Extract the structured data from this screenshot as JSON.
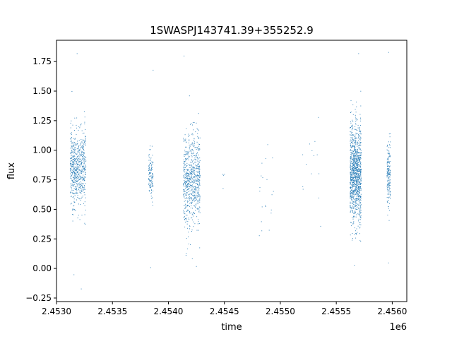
{
  "chart_data": {
    "type": "scatter",
    "title": "1SWASPJ143741.39+355252.9",
    "xlabel": "time",
    "ylabel": "flux",
    "x_offset_label": "1e6",
    "xlim": [
      2453000,
      2456130
    ],
    "ylim": [
      -0.28,
      1.93
    ],
    "x_ticks": [
      2453000,
      2453500,
      2454000,
      2454500,
      2455000,
      2455500,
      2456000
    ],
    "x_tick_labels": [
      "2.4530",
      "2.4535",
      "2.4540",
      "2.4545",
      "2.4550",
      "2.4555",
      "2.4560"
    ],
    "y_ticks": [
      -0.25,
      0.0,
      0.25,
      0.5,
      0.75,
      1.0,
      1.25,
      1.5,
      1.75
    ],
    "y_tick_labels": [
      "−0.25",
      "0.00",
      "0.25",
      "0.50",
      "0.75",
      "1.00",
      "1.25",
      "1.50",
      "1.75"
    ],
    "grid": false,
    "series": [
      {
        "color": "#1f77b4",
        "clusters": [
          {
            "x_range": [
              2453120,
              2453170
            ],
            "mean": 0.85,
            "sd": 0.17,
            "n": 260,
            "min": -0.05,
            "max": 1.5
          },
          {
            "x_range": [
              2453170,
              2453260
            ],
            "mean": 0.84,
            "sd": 0.16,
            "n": 380,
            "min": -0.17,
            "max": 1.82
          },
          {
            "x_range": [
              2453820,
              2453860
            ],
            "mean": 0.77,
            "sd": 0.1,
            "n": 120,
            "min": 0.01,
            "max": 1.68
          },
          {
            "x_range": [
              2454130,
              2454280
            ],
            "mean": 0.76,
            "sd": 0.2,
            "n": 700,
            "min": 0.02,
            "max": 1.8
          },
          {
            "x_range": [
              2454480,
              2454500
            ],
            "mean": 0.75,
            "sd": 0.05,
            "n": 4,
            "min": 0.68,
            "max": 0.8
          },
          {
            "x_range": [
              2454800,
              2454940
            ],
            "mean": 0.75,
            "sd": 0.2,
            "n": 20,
            "min": 0.28,
            "max": 1.05
          },
          {
            "x_range": [
              2455180,
              2455360
            ],
            "mean": 0.82,
            "sd": 0.15,
            "n": 14,
            "min": 0.36,
            "max": 1.28
          },
          {
            "x_range": [
              2455620,
              2455720
            ],
            "mean": 0.8,
            "sd": 0.21,
            "n": 1100,
            "min": 0.03,
            "max": 1.82
          },
          {
            "x_range": [
              2455950,
              2455980
            ],
            "mean": 0.8,
            "sd": 0.13,
            "n": 170,
            "min": 0.05,
            "max": 1.83
          }
        ]
      }
    ]
  }
}
